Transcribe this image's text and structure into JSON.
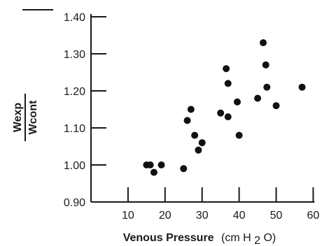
{
  "chart_data": {
    "type": "scatter",
    "title": "",
    "xlabel": {
      "main": "Venous Pressure",
      "unit_prefix": "(cm H",
      "unit_sub": "2",
      "unit_suffix": "O)"
    },
    "ylabel": {
      "numerator": "Wexp",
      "denominator": "Wcont"
    },
    "xlim": [
      0,
      62
    ],
    "ylim": [
      0.9,
      1.4
    ],
    "xticks": [
      10,
      20,
      30,
      40,
      50,
      60
    ],
    "xtick_labels": [
      "10",
      "20",
      "30",
      "40",
      "50",
      "60"
    ],
    "yticks": [
      0.9,
      1.0,
      1.1,
      1.2,
      1.3,
      1.4
    ],
    "ytick_labels": [
      "0.90",
      "1.00",
      "1.10",
      "1.20",
      "1.30",
      "1.40"
    ],
    "grid": false,
    "legend": "none",
    "series": [
      {
        "points": [
          {
            "x": 15,
            "y": 1.0
          },
          {
            "x": 16,
            "y": 1.0
          },
          {
            "x": 17,
            "y": 0.98
          },
          {
            "x": 19,
            "y": 1.0
          },
          {
            "x": 25,
            "y": 0.99
          },
          {
            "x": 26,
            "y": 1.12
          },
          {
            "x": 27,
            "y": 1.15
          },
          {
            "x": 28,
            "y": 1.08
          },
          {
            "x": 29,
            "y": 1.04
          },
          {
            "x": 30,
            "y": 1.06
          },
          {
            "x": 35,
            "y": 1.14
          },
          {
            "x": 36.5,
            "y": 1.26
          },
          {
            "x": 37,
            "y": 1.22
          },
          {
            "x": 37,
            "y": 1.13
          },
          {
            "x": 39.5,
            "y": 1.17
          },
          {
            "x": 40,
            "y": 1.08
          },
          {
            "x": 45,
            "y": 1.18
          },
          {
            "x": 46.5,
            "y": 1.33
          },
          {
            "x": 47.2,
            "y": 1.27
          },
          {
            "x": 47.5,
            "y": 1.21
          },
          {
            "x": 50,
            "y": 1.16
          },
          {
            "x": 57,
            "y": 1.21
          }
        ]
      }
    ]
  }
}
